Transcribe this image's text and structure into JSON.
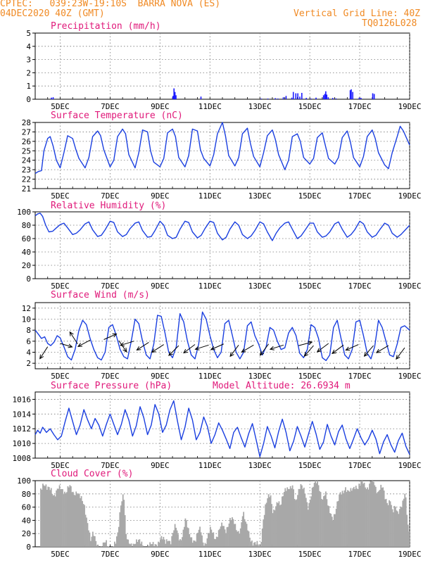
{
  "header": {
    "line1": "CPTEC:   039:23W-19:10S  BARRA NOVA (ES)",
    "line2": "04DEC2020 40Z (GMT)",
    "grid_note": "Vertical Grid Line: 40Z",
    "code": "TQ0126L028"
  },
  "x_ticks": [
    "5DEC",
    "7DEC",
    "9DEC",
    "11DEC",
    "13DEC",
    "15DEC",
    "17DEC",
    "19DEC"
  ],
  "chart_data": [
    {
      "type": "bar",
      "title": "Precipitation (mm/h)",
      "ylim": [
        0,
        5
      ],
      "yticks": [
        0,
        1,
        2,
        3,
        4,
        5
      ],
      "grid": true,
      "color": "#1a1aff",
      "x_days": [
        4.65,
        4.72,
        9.52,
        9.56,
        9.6,
        9.64,
        10.64,
        13.05,
        13.32,
        13.62,
        13.72,
        13.94,
        14.05,
        14.28,
        14.34,
        14.44,
        14.52,
        14.6,
        14.68,
        14.86,
        15.05,
        15.25,
        15.55,
        15.6,
        15.64,
        15.68,
        15.74,
        15.92,
        16.05,
        16.62,
        16.66,
        16.72,
        16.98,
        17.05,
        17.52,
        17.58
      ],
      "values": [
        0.12,
        0.15,
        0.25,
        0.82,
        0.55,
        0.3,
        0.2,
        0.05,
        0.05,
        0.08,
        0.05,
        0.15,
        0.25,
        0.12,
        0.55,
        0.45,
        0.45,
        0.2,
        0.48,
        0.1,
        0.05,
        0.12,
        0.3,
        0.4,
        0.6,
        0.35,
        0.15,
        0.1,
        0.06,
        0.68,
        0.75,
        0.55,
        0.12,
        0.1,
        0.45,
        0.4
      ]
    },
    {
      "type": "line",
      "title": "Surface Temperature (nC)",
      "ylim": [
        21,
        28
      ],
      "yticks": [
        21,
        22,
        23,
        24,
        25,
        26,
        27,
        28
      ],
      "grid": true,
      "color": "#1a3fe0",
      "x_days": [
        4.0,
        4.12,
        4.25,
        4.35,
        4.5,
        4.6,
        4.72,
        4.85,
        5.0,
        5.15,
        5.3,
        5.5,
        5.62,
        5.75,
        6.0,
        6.15,
        6.3,
        6.5,
        6.62,
        6.75,
        7.0,
        7.15,
        7.3,
        7.5,
        7.62,
        7.75,
        8.0,
        8.15,
        8.3,
        8.5,
        8.62,
        8.75,
        9.0,
        9.15,
        9.3,
        9.5,
        9.62,
        9.75,
        10.0,
        10.15,
        10.3,
        10.5,
        10.62,
        10.75,
        11.0,
        11.15,
        11.3,
        11.5,
        11.62,
        11.75,
        12.0,
        12.15,
        12.3,
        12.5,
        12.62,
        12.75,
        13.0,
        13.15,
        13.3,
        13.5,
        13.62,
        13.75,
        14.0,
        14.15,
        14.3,
        14.5,
        14.62,
        14.75,
        15.0,
        15.15,
        15.3,
        15.5,
        15.62,
        15.75,
        16.0,
        16.15,
        16.3,
        16.5,
        16.62,
        16.75,
        17.0,
        17.15,
        17.3,
        17.5,
        17.62,
        17.75,
        18.0,
        18.15,
        18.3,
        18.5,
        18.62,
        18.75,
        19.0
      ],
      "values": [
        22.6,
        22.8,
        22.9,
        25.0,
        26.3,
        26.5,
        25.5,
        24.0,
        23.2,
        24.8,
        26.6,
        26.3,
        25.2,
        24.2,
        23.2,
        24.3,
        26.5,
        27.1,
        26.6,
        25.1,
        23.3,
        24.0,
        26.5,
        27.3,
        26.8,
        24.6,
        23.2,
        24.8,
        27.2,
        27.0,
        25.0,
        23.8,
        23.3,
        24.2,
        26.9,
        27.3,
        26.5,
        24.3,
        23.3,
        24.5,
        27.3,
        27.1,
        25.1,
        24.2,
        23.4,
        24.6,
        26.8,
        28.0,
        26.6,
        24.5,
        23.4,
        24.3,
        26.8,
        27.4,
        25.8,
        24.4,
        23.3,
        24.8,
        26.6,
        27.2,
        26.2,
        24.6,
        23.0,
        24.0,
        26.5,
        26.8,
        26.0,
        24.3,
        23.6,
        24.2,
        26.4,
        26.9,
        25.6,
        24.2,
        23.6,
        24.3,
        26.4,
        27.1,
        26.0,
        24.3,
        23.3,
        24.4,
        26.5,
        27.2,
        26.3,
        24.8,
        23.5,
        23.1,
        24.8,
        26.5,
        27.6,
        27.1,
        25.6
      ]
    },
    {
      "type": "line",
      "title": "Relative Humidity (%)",
      "ylim": [
        0,
        100
      ],
      "yticks": [
        0,
        20,
        40,
        60,
        80,
        100
      ],
      "grid": true,
      "color": "#1a3fe0",
      "x_days": [
        4.0,
        4.1,
        4.2,
        4.3,
        4.42,
        4.55,
        4.7,
        4.85,
        5.0,
        5.15,
        5.3,
        5.5,
        5.65,
        5.8,
        6.0,
        6.15,
        6.3,
        6.5,
        6.65,
        6.8,
        7.0,
        7.15,
        7.3,
        7.5,
        7.65,
        7.8,
        8.0,
        8.15,
        8.3,
        8.5,
        8.65,
        8.8,
        9.0,
        9.15,
        9.3,
        9.5,
        9.65,
        9.8,
        10.0,
        10.15,
        10.3,
        10.5,
        10.65,
        10.8,
        11.0,
        11.15,
        11.3,
        11.5,
        11.65,
        11.8,
        12.0,
        12.15,
        12.3,
        12.5,
        12.65,
        12.8,
        13.0,
        13.15,
        13.3,
        13.5,
        13.65,
        13.8,
        14.0,
        14.15,
        14.3,
        14.5,
        14.65,
        14.8,
        15.0,
        15.15,
        15.3,
        15.5,
        15.65,
        15.8,
        16.0,
        16.15,
        16.3,
        16.5,
        16.65,
        16.8,
        17.0,
        17.15,
        17.3,
        17.5,
        17.65,
        17.8,
        18.0,
        18.15,
        18.3,
        18.5,
        18.65,
        18.8,
        19.0
      ],
      "values": [
        94,
        97,
        98,
        93,
        80,
        70,
        71,
        76,
        81,
        83,
        76,
        66,
        68,
        73,
        82,
        85,
        73,
        63,
        65,
        73,
        86,
        84,
        70,
        63,
        66,
        75,
        83,
        85,
        72,
        62,
        63,
        72,
        86,
        80,
        65,
        60,
        62,
        74,
        86,
        84,
        70,
        61,
        65,
        75,
        86,
        84,
        68,
        58,
        62,
        74,
        85,
        80,
        66,
        60,
        64,
        72,
        85,
        82,
        70,
        57,
        68,
        76,
        83,
        85,
        74,
        60,
        64,
        72,
        83,
        83,
        70,
        62,
        64,
        70,
        82,
        85,
        74,
        62,
        66,
        73,
        86,
        82,
        70,
        62,
        65,
        73,
        83,
        80,
        68,
        62,
        66,
        72,
        80
      ]
    },
    {
      "type": "line",
      "title": "Surface Wind (m/s)",
      "ylim": [
        1,
        13
      ],
      "yticks": [
        2,
        4,
        6,
        8,
        10,
        12
      ],
      "grid": true,
      "color": "#1a3fe0",
      "x_days": [
        4.0,
        4.12,
        4.25,
        4.38,
        4.5,
        4.62,
        4.75,
        4.88,
        5.0,
        5.15,
        5.3,
        5.45,
        5.6,
        5.75,
        5.9,
        6.05,
        6.2,
        6.35,
        6.5,
        6.65,
        6.8,
        6.95,
        7.1,
        7.25,
        7.4,
        7.55,
        7.7,
        7.85,
        8.0,
        8.15,
        8.3,
        8.45,
        8.6,
        8.75,
        8.9,
        9.05,
        9.2,
        9.35,
        9.5,
        9.65,
        9.8,
        9.95,
        10.1,
        10.25,
        10.4,
        10.55,
        10.7,
        10.85,
        11.0,
        11.15,
        11.3,
        11.45,
        11.6,
        11.75,
        11.9,
        12.05,
        12.2,
        12.35,
        12.5,
        12.65,
        12.8,
        12.95,
        13.1,
        13.25,
        13.4,
        13.55,
        13.7,
        13.85,
        14.0,
        14.15,
        14.3,
        14.45,
        14.6,
        14.75,
        14.9,
        15.05,
        15.2,
        15.35,
        15.5,
        15.65,
        15.8,
        15.95,
        16.1,
        16.25,
        16.4,
        16.55,
        16.7,
        16.85,
        17.0,
        17.15,
        17.3,
        17.45,
        17.6,
        17.75,
        17.9,
        18.05,
        18.2,
        18.35,
        18.5,
        18.65,
        18.8,
        19.0
      ],
      "values": [
        8.0,
        7.3,
        6.5,
        6.8,
        5.6,
        5.2,
        5.8,
        7.0,
        6.6,
        5.0,
        3.2,
        2.6,
        4.5,
        8.0,
        9.8,
        9.0,
        6.5,
        4.5,
        3.0,
        2.6,
        4.0,
        8.5,
        9.0,
        7.0,
        4.5,
        3.2,
        2.8,
        6.0,
        10.0,
        9.2,
        6.0,
        3.5,
        2.8,
        5.5,
        10.7,
        10.5,
        7.5,
        4.0,
        3.0,
        5.0,
        11.0,
        9.5,
        6.0,
        3.5,
        2.8,
        5.5,
        11.3,
        10.0,
        7.0,
        4.5,
        3.0,
        4.0,
        9.2,
        9.8,
        7.0,
        4.0,
        2.8,
        4.0,
        8.8,
        9.5,
        7.0,
        5.5,
        3.5,
        5.0,
        8.5,
        8.0,
        6.0,
        4.5,
        4.8,
        7.5,
        8.5,
        7.0,
        3.8,
        3.0,
        4.5,
        9.0,
        8.5,
        6.5,
        3.0,
        2.5,
        3.5,
        8.5,
        9.8,
        6.5,
        3.5,
        2.8,
        4.5,
        9.5,
        9.8,
        7.0,
        3.8,
        2.8,
        5.0,
        9.8,
        8.5,
        6.0,
        3.5,
        3.2,
        5.5,
        8.5,
        8.8,
        8.0
      ],
      "vectors": {
        "x_days": [
          4.5,
          5.0,
          5.7,
          6.2,
          6.75,
          7.35,
          7.95,
          8.55,
          9.15,
          9.75,
          10.4,
          10.95,
          11.55,
          12.15,
          12.75,
          13.35,
          13.95,
          14.55,
          15.15,
          15.75,
          16.35,
          16.95,
          17.55,
          18.15,
          18.8
        ],
        "y": [
          5.0,
          5.6,
          5.5,
          6.2,
          6.3,
          6.1,
          6.0,
          5.8,
          5.4,
          5.2,
          5.4,
          5.3,
          5.5,
          5.3,
          5.3,
          5.5,
          5.3,
          5.2,
          5.2,
          5.6,
          5.3,
          5.4,
          5.2,
          5.2,
          4.8
        ],
        "u": [
          -0.55,
          0.85,
          -0.55,
          -0.85,
          0.9,
          0.55,
          -0.95,
          -0.85,
          -0.85,
          -0.7,
          -0.8,
          -0.95,
          -0.9,
          -0.6,
          -0.85,
          -0.6,
          -0.95,
          0.95,
          -0.65,
          -0.8,
          -0.8,
          -0.9,
          -0.65,
          -0.85,
          -0.6
        ],
        "v": [
          -0.85,
          -0.25,
          0.85,
          -0.45,
          0.4,
          -0.8,
          -0.3,
          -0.55,
          -0.55,
          -0.7,
          -0.6,
          -0.3,
          -0.4,
          -0.8,
          -0.5,
          -0.8,
          -0.3,
          0.25,
          -0.75,
          -0.6,
          -0.6,
          -0.4,
          -0.75,
          -0.5,
          -0.8
        ]
      }
    },
    {
      "type": "line",
      "title": "Surface Pressure (hPa)",
      "annotation": "Model Altitude: 26.6934 m",
      "ylim": [
        1008,
        1017
      ],
      "yticks": [
        1008,
        1010,
        1012,
        1014,
        1016
      ],
      "grid": true,
      "color": "#1a3fe0",
      "x_days": [
        4.0,
        4.1,
        4.2,
        4.3,
        4.45,
        4.6,
        4.75,
        4.9,
        5.05,
        5.2,
        5.35,
        5.5,
        5.65,
        5.8,
        5.95,
        6.1,
        6.25,
        6.4,
        6.55,
        6.7,
        6.85,
        7.0,
        7.15,
        7.3,
        7.45,
        7.6,
        7.75,
        7.9,
        8.05,
        8.2,
        8.35,
        8.5,
        8.65,
        8.8,
        8.95,
        9.1,
        9.25,
        9.4,
        9.55,
        9.7,
        9.85,
        10.0,
        10.15,
        10.3,
        10.45,
        10.6,
        10.75,
        10.9,
        11.05,
        11.2,
        11.35,
        11.5,
        11.65,
        11.8,
        11.95,
        12.1,
        12.25,
        12.4,
        12.55,
        12.7,
        12.85,
        13.0,
        13.15,
        13.3,
        13.45,
        13.6,
        13.75,
        13.9,
        14.05,
        14.2,
        14.35,
        14.5,
        14.65,
        14.8,
        14.95,
        15.1,
        15.25,
        15.4,
        15.55,
        15.7,
        15.85,
        16.0,
        16.15,
        16.3,
        16.45,
        16.6,
        16.75,
        16.9,
        17.05,
        17.2,
        17.35,
        17.5,
        17.65,
        17.8,
        17.95,
        18.1,
        18.25,
        18.4,
        18.55,
        18.7,
        18.85,
        19.0
      ],
      "values": [
        1011.2,
        1011.8,
        1011.4,
        1012.2,
        1011.5,
        1012.0,
        1011.2,
        1010.5,
        1011.0,
        1013.0,
        1014.8,
        1013.0,
        1011.2,
        1012.5,
        1014.6,
        1013.2,
        1012.0,
        1013.4,
        1012.5,
        1011.0,
        1012.6,
        1014.0,
        1012.6,
        1011.2,
        1012.6,
        1014.6,
        1013.2,
        1011.0,
        1012.4,
        1015.0,
        1013.5,
        1011.2,
        1012.5,
        1015.3,
        1014.0,
        1011.5,
        1012.5,
        1014.6,
        1015.8,
        1013.0,
        1010.5,
        1012.2,
        1014.8,
        1013.2,
        1010.5,
        1011.5,
        1013.6,
        1012.3,
        1010.0,
        1011.2,
        1012.8,
        1011.8,
        1010.6,
        1009.3,
        1011.5,
        1012.2,
        1010.8,
        1009.5,
        1011.3,
        1012.7,
        1010.5,
        1008.2,
        1010.0,
        1012.3,
        1011.0,
        1009.4,
        1011.6,
        1013.3,
        1011.5,
        1009.0,
        1010.3,
        1012.3,
        1011.0,
        1009.5,
        1011.3,
        1013.0,
        1011.3,
        1009.2,
        1010.2,
        1012.6,
        1011.0,
        1009.8,
        1011.6,
        1012.5,
        1010.6,
        1009.3,
        1010.6,
        1012.0,
        1010.8,
        1009.8,
        1010.6,
        1011.8,
        1010.6,
        1008.6,
        1010.2,
        1011.2,
        1009.8,
        1008.8,
        1010.4,
        1011.4,
        1009.6,
        1008.5
      ]
    },
    {
      "type": "bar",
      "title": "Cloud Cover (%)",
      "ylim": [
        0,
        100
      ],
      "yticks": [
        0,
        20,
        40,
        60,
        80,
        100
      ],
      "grid": true,
      "color": "#a8a8a8",
      "profile_x_days": [
        4.0,
        4.15,
        4.3,
        4.45,
        4.6,
        4.75,
        4.9,
        5.05,
        5.2,
        5.35,
        5.5,
        5.65,
        5.8,
        5.95,
        6.1,
        6.2,
        6.3,
        6.4,
        6.5,
        6.6,
        6.7,
        6.8,
        6.9,
        7.0,
        7.1,
        7.2,
        7.3,
        7.4,
        7.5,
        7.55,
        7.6,
        7.7,
        7.8,
        7.9,
        8.0,
        8.1,
        8.2,
        8.3,
        8.4,
        8.5,
        8.6,
        8.7,
        8.8,
        8.9,
        9.0,
        9.1,
        9.2,
        9.3,
        9.4,
        9.5,
        9.6,
        9.7,
        9.8,
        9.9,
        10.0,
        10.1,
        10.2,
        10.3,
        10.4,
        10.5,
        10.6,
        10.7,
        10.8,
        10.9,
        11.0,
        11.1,
        11.2,
        11.3,
        11.4,
        11.5,
        11.6,
        11.7,
        11.8,
        11.9,
        12.0,
        12.1,
        12.2,
        12.3,
        12.4,
        12.5,
        12.6,
        12.7,
        12.8,
        12.9,
        13.0,
        13.1,
        13.2,
        13.3,
        13.4,
        13.5,
        13.6,
        13.7,
        13.8,
        13.9,
        14.0,
        14.1,
        14.2,
        14.3,
        14.4,
        14.5,
        14.6,
        14.7,
        14.8,
        14.9,
        15.0,
        15.1,
        15.2,
        15.3,
        15.4,
        15.5,
        15.6,
        15.7,
        15.8,
        15.9,
        16.0,
        16.1,
        16.2,
        16.3,
        16.4,
        16.5,
        16.6,
        16.7,
        16.8,
        16.9,
        17.0,
        17.1,
        17.2,
        17.3,
        17.4,
        17.5,
        17.6,
        17.7,
        17.8,
        17.9,
        18.0,
        18.1,
        18.2,
        18.3,
        18.4,
        18.5,
        18.6,
        18.7,
        18.8,
        18.9,
        19.0
      ],
      "profile_values": [
        92,
        88,
        96,
        85,
        90,
        78,
        86,
        88,
        84,
        90,
        80,
        86,
        72,
        60,
        35,
        10,
        18,
        8,
        3,
        0,
        2,
        5,
        1,
        0,
        2,
        4,
        20,
        65,
        82,
        74,
        20,
        4,
        2,
        6,
        10,
        8,
        4,
        2,
        0,
        3,
        1,
        2,
        5,
        8,
        12,
        10,
        6,
        15,
        8,
        20,
        30,
        18,
        12,
        22,
        40,
        25,
        18,
        12,
        8,
        20,
        28,
        10,
        5,
        15,
        25,
        22,
        15,
        20,
        28,
        32,
        25,
        35,
        42,
        38,
        30,
        25,
        28,
        50,
        35,
        28,
        15,
        5,
        2,
        3,
        1,
        40,
        60,
        72,
        78,
        55,
        62,
        66,
        58,
        80,
        92,
        88,
        85,
        90,
        70,
        84,
        92,
        86,
        80,
        62,
        74,
        88,
        96,
        100,
        85,
        70,
        80,
        62,
        55,
        45,
        50,
        66,
        82,
        86,
        90,
        80,
        82,
        90,
        95,
        88,
        92,
        98,
        94,
        90,
        96,
        100,
        90,
        85,
        92,
        88,
        70,
        66,
        75,
        52,
        58,
        48,
        62,
        70,
        82,
        30,
        10
      ]
    }
  ]
}
